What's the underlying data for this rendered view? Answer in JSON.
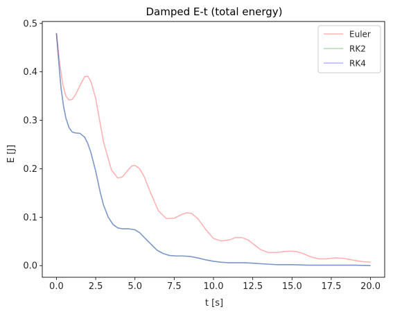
{
  "chart_data": {
    "type": "line",
    "title": "Damped E-t (total energy)",
    "xlabel": "t [s]",
    "ylabel": "E [J]",
    "xlim": [
      -0.9,
      20.9
    ],
    "ylim": [
      -0.024,
      0.504
    ],
    "xticks": [
      0.0,
      2.5,
      5.0,
      7.5,
      10.0,
      12.5,
      15.0,
      17.5,
      20.0
    ],
    "xtick_labels": [
      "0.0",
      "2.5",
      "5.0",
      "7.5",
      "10.0",
      "12.5",
      "15.0",
      "17.5",
      "20.0"
    ],
    "yticks": [
      0.0,
      0.1,
      0.2,
      0.3,
      0.4,
      0.5
    ],
    "ytick_labels": [
      "0.0",
      "0.1",
      "0.2",
      "0.3",
      "0.4",
      "0.5"
    ],
    "grid": false,
    "legend_position": "top-right",
    "series": [
      {
        "name": "Euler",
        "color": "#ff0000",
        "opacity": 0.3,
        "x": [
          0.0,
          0.2,
          0.4,
          0.6,
          0.8,
          1.0,
          1.2,
          1.5,
          1.8,
          2.0,
          2.2,
          2.5,
          3.0,
          3.5,
          3.9,
          4.2,
          4.5,
          4.8,
          5.0,
          5.3,
          5.6,
          6.0,
          6.5,
          7.0,
          7.5,
          8.0,
          8.3,
          8.6,
          9.0,
          9.5,
          10.0,
          10.5,
          11.0,
          11.4,
          11.8,
          12.2,
          12.6,
          13.0,
          13.5,
          14.0,
          14.5,
          14.9,
          15.3,
          15.7,
          16.2,
          16.7,
          17.2,
          17.8,
          18.3,
          18.8,
          19.3,
          20.0
        ],
        "y": [
          0.48,
          0.42,
          0.375,
          0.35,
          0.342,
          0.343,
          0.352,
          0.372,
          0.39,
          0.391,
          0.38,
          0.345,
          0.255,
          0.198,
          0.181,
          0.183,
          0.195,
          0.206,
          0.207,
          0.2,
          0.183,
          0.15,
          0.113,
          0.097,
          0.098,
          0.106,
          0.109,
          0.108,
          0.097,
          0.075,
          0.056,
          0.051,
          0.053,
          0.058,
          0.058,
          0.053,
          0.043,
          0.033,
          0.027,
          0.027,
          0.029,
          0.03,
          0.029,
          0.025,
          0.018,
          0.014,
          0.014,
          0.016,
          0.015,
          0.012,
          0.009,
          0.007
        ]
      },
      {
        "name": "RK2",
        "color": "#008000",
        "opacity": 0.3,
        "x": [
          0.0,
          0.1,
          0.2,
          0.3,
          0.45,
          0.6,
          0.8,
          1.0,
          1.2,
          1.5,
          1.8,
          2.0,
          2.2,
          2.5,
          2.8,
          3.0,
          3.3,
          3.6,
          3.9,
          4.2,
          4.6,
          5.0,
          5.3,
          5.6,
          6.0,
          6.4,
          6.8,
          7.2,
          7.6,
          8.0,
          8.5,
          9.0,
          9.5,
          10.0,
          10.5,
          11.0,
          11.5,
          12.0,
          12.5,
          13.0,
          13.5,
          14.0,
          15.0,
          16.0,
          17.0,
          18.0,
          19.0,
          20.0
        ],
        "y": [
          0.48,
          0.44,
          0.4,
          0.365,
          0.33,
          0.305,
          0.285,
          0.276,
          0.274,
          0.273,
          0.265,
          0.252,
          0.233,
          0.195,
          0.15,
          0.125,
          0.1,
          0.085,
          0.078,
          0.076,
          0.076,
          0.074,
          0.068,
          0.058,
          0.045,
          0.032,
          0.025,
          0.021,
          0.02,
          0.02,
          0.019,
          0.016,
          0.012,
          0.009,
          0.007,
          0.006,
          0.006,
          0.006,
          0.005,
          0.004,
          0.003,
          0.002,
          0.002,
          0.001,
          0.001,
          0.001,
          0.001,
          0.0
        ]
      },
      {
        "name": "RK4",
        "color": "#0000ff",
        "opacity": 0.3,
        "x": [
          0.0,
          0.1,
          0.2,
          0.3,
          0.45,
          0.6,
          0.8,
          1.0,
          1.2,
          1.5,
          1.8,
          2.0,
          2.2,
          2.5,
          2.8,
          3.0,
          3.3,
          3.6,
          3.9,
          4.2,
          4.6,
          5.0,
          5.3,
          5.6,
          6.0,
          6.4,
          6.8,
          7.2,
          7.6,
          8.0,
          8.5,
          9.0,
          9.5,
          10.0,
          10.5,
          11.0,
          11.5,
          12.0,
          12.5,
          13.0,
          13.5,
          14.0,
          15.0,
          16.0,
          17.0,
          18.0,
          19.0,
          20.0
        ],
        "y": [
          0.48,
          0.44,
          0.4,
          0.365,
          0.33,
          0.305,
          0.285,
          0.276,
          0.274,
          0.273,
          0.265,
          0.252,
          0.233,
          0.195,
          0.15,
          0.125,
          0.1,
          0.085,
          0.078,
          0.076,
          0.076,
          0.074,
          0.068,
          0.058,
          0.045,
          0.032,
          0.025,
          0.021,
          0.02,
          0.02,
          0.019,
          0.016,
          0.012,
          0.009,
          0.007,
          0.006,
          0.006,
          0.006,
          0.005,
          0.004,
          0.003,
          0.002,
          0.002,
          0.001,
          0.001,
          0.001,
          0.001,
          0.0
        ]
      }
    ]
  }
}
